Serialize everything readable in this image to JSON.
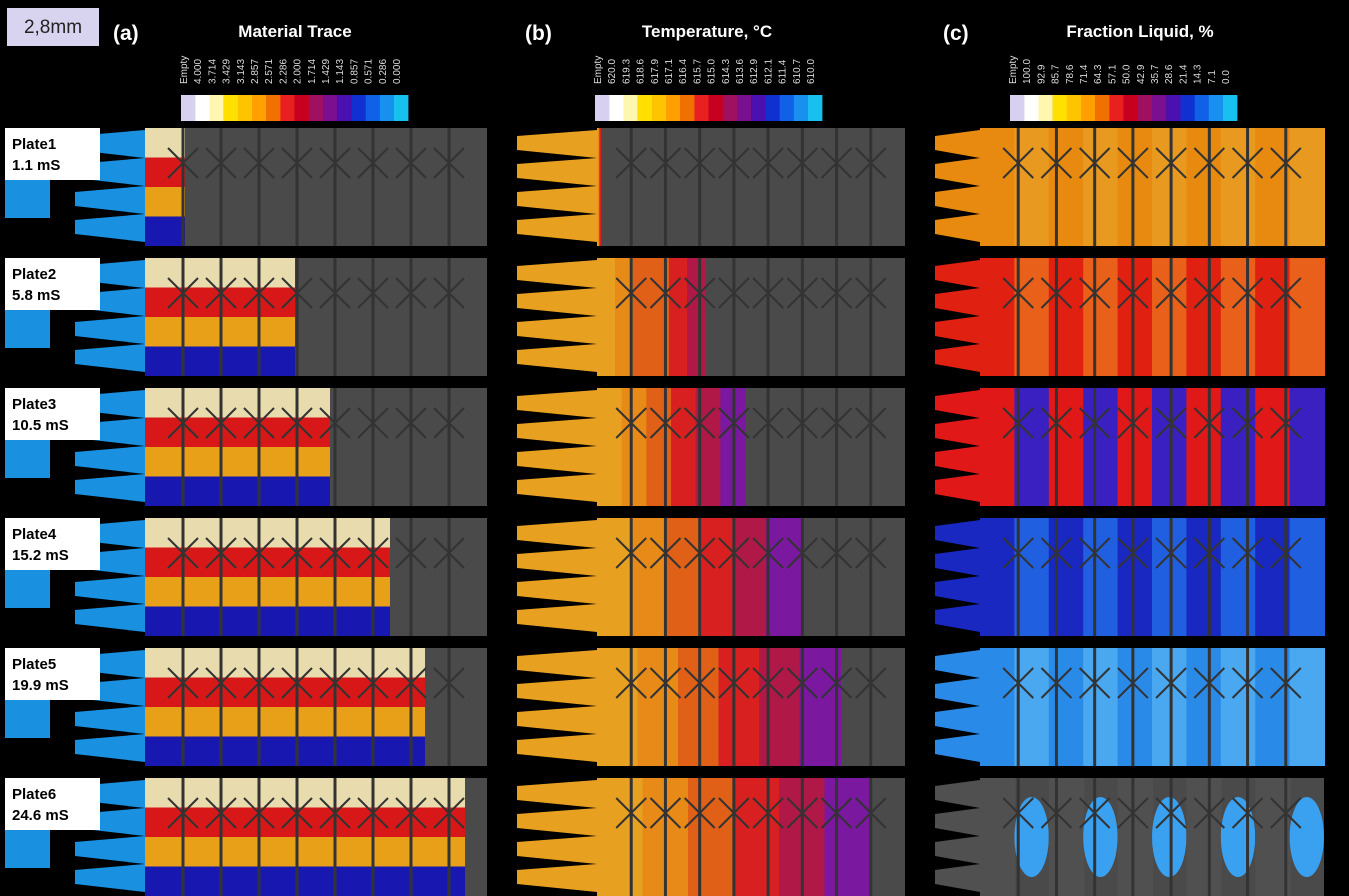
{
  "scale_label": "2,8mm",
  "panels": [
    {
      "letter": "(a)",
      "title": "Material Trace",
      "legend": [
        "Empty",
        "4.000",
        "3.714",
        "3.429",
        "3.143",
        "2.857",
        "2.571",
        "2.286",
        "2.000",
        "1.714",
        "1.429",
        "1.143",
        "0.857",
        "0.571",
        "0.286",
        "0.000"
      ]
    },
    {
      "letter": "(b)",
      "title": "Temperature, °C",
      "legend": [
        "Empty",
        "620.0",
        "619.3",
        "618.6",
        "617.9",
        "617.1",
        "616.4",
        "615.7",
        "615.0",
        "614.3",
        "613.6",
        "612.9",
        "612.1",
        "611.4",
        "610.7",
        "610.0"
      ]
    },
    {
      "letter": "(c)",
      "title": "Fraction Liquid, %",
      "legend": [
        "Empty",
        "100.0",
        "92.9",
        "85.7",
        "78.6",
        "71.4",
        "64.3",
        "57.1",
        "50.0",
        "42.9",
        "35.7",
        "28.6",
        "21.4",
        "14.3",
        "7.1",
        "0.0"
      ]
    }
  ],
  "rows": [
    {
      "plate": "Plate1",
      "time": "1.1 mS"
    },
    {
      "plate": "Plate2",
      "time": "5.8 mS"
    },
    {
      "plate": "Plate3",
      "time": "10.5 mS"
    },
    {
      "plate": "Plate4",
      "time": "15.2 mS"
    },
    {
      "plate": "Plate5",
      "time": "19.9 mS"
    },
    {
      "plate": "Plate6",
      "time": "24.6 mS"
    }
  ]
}
